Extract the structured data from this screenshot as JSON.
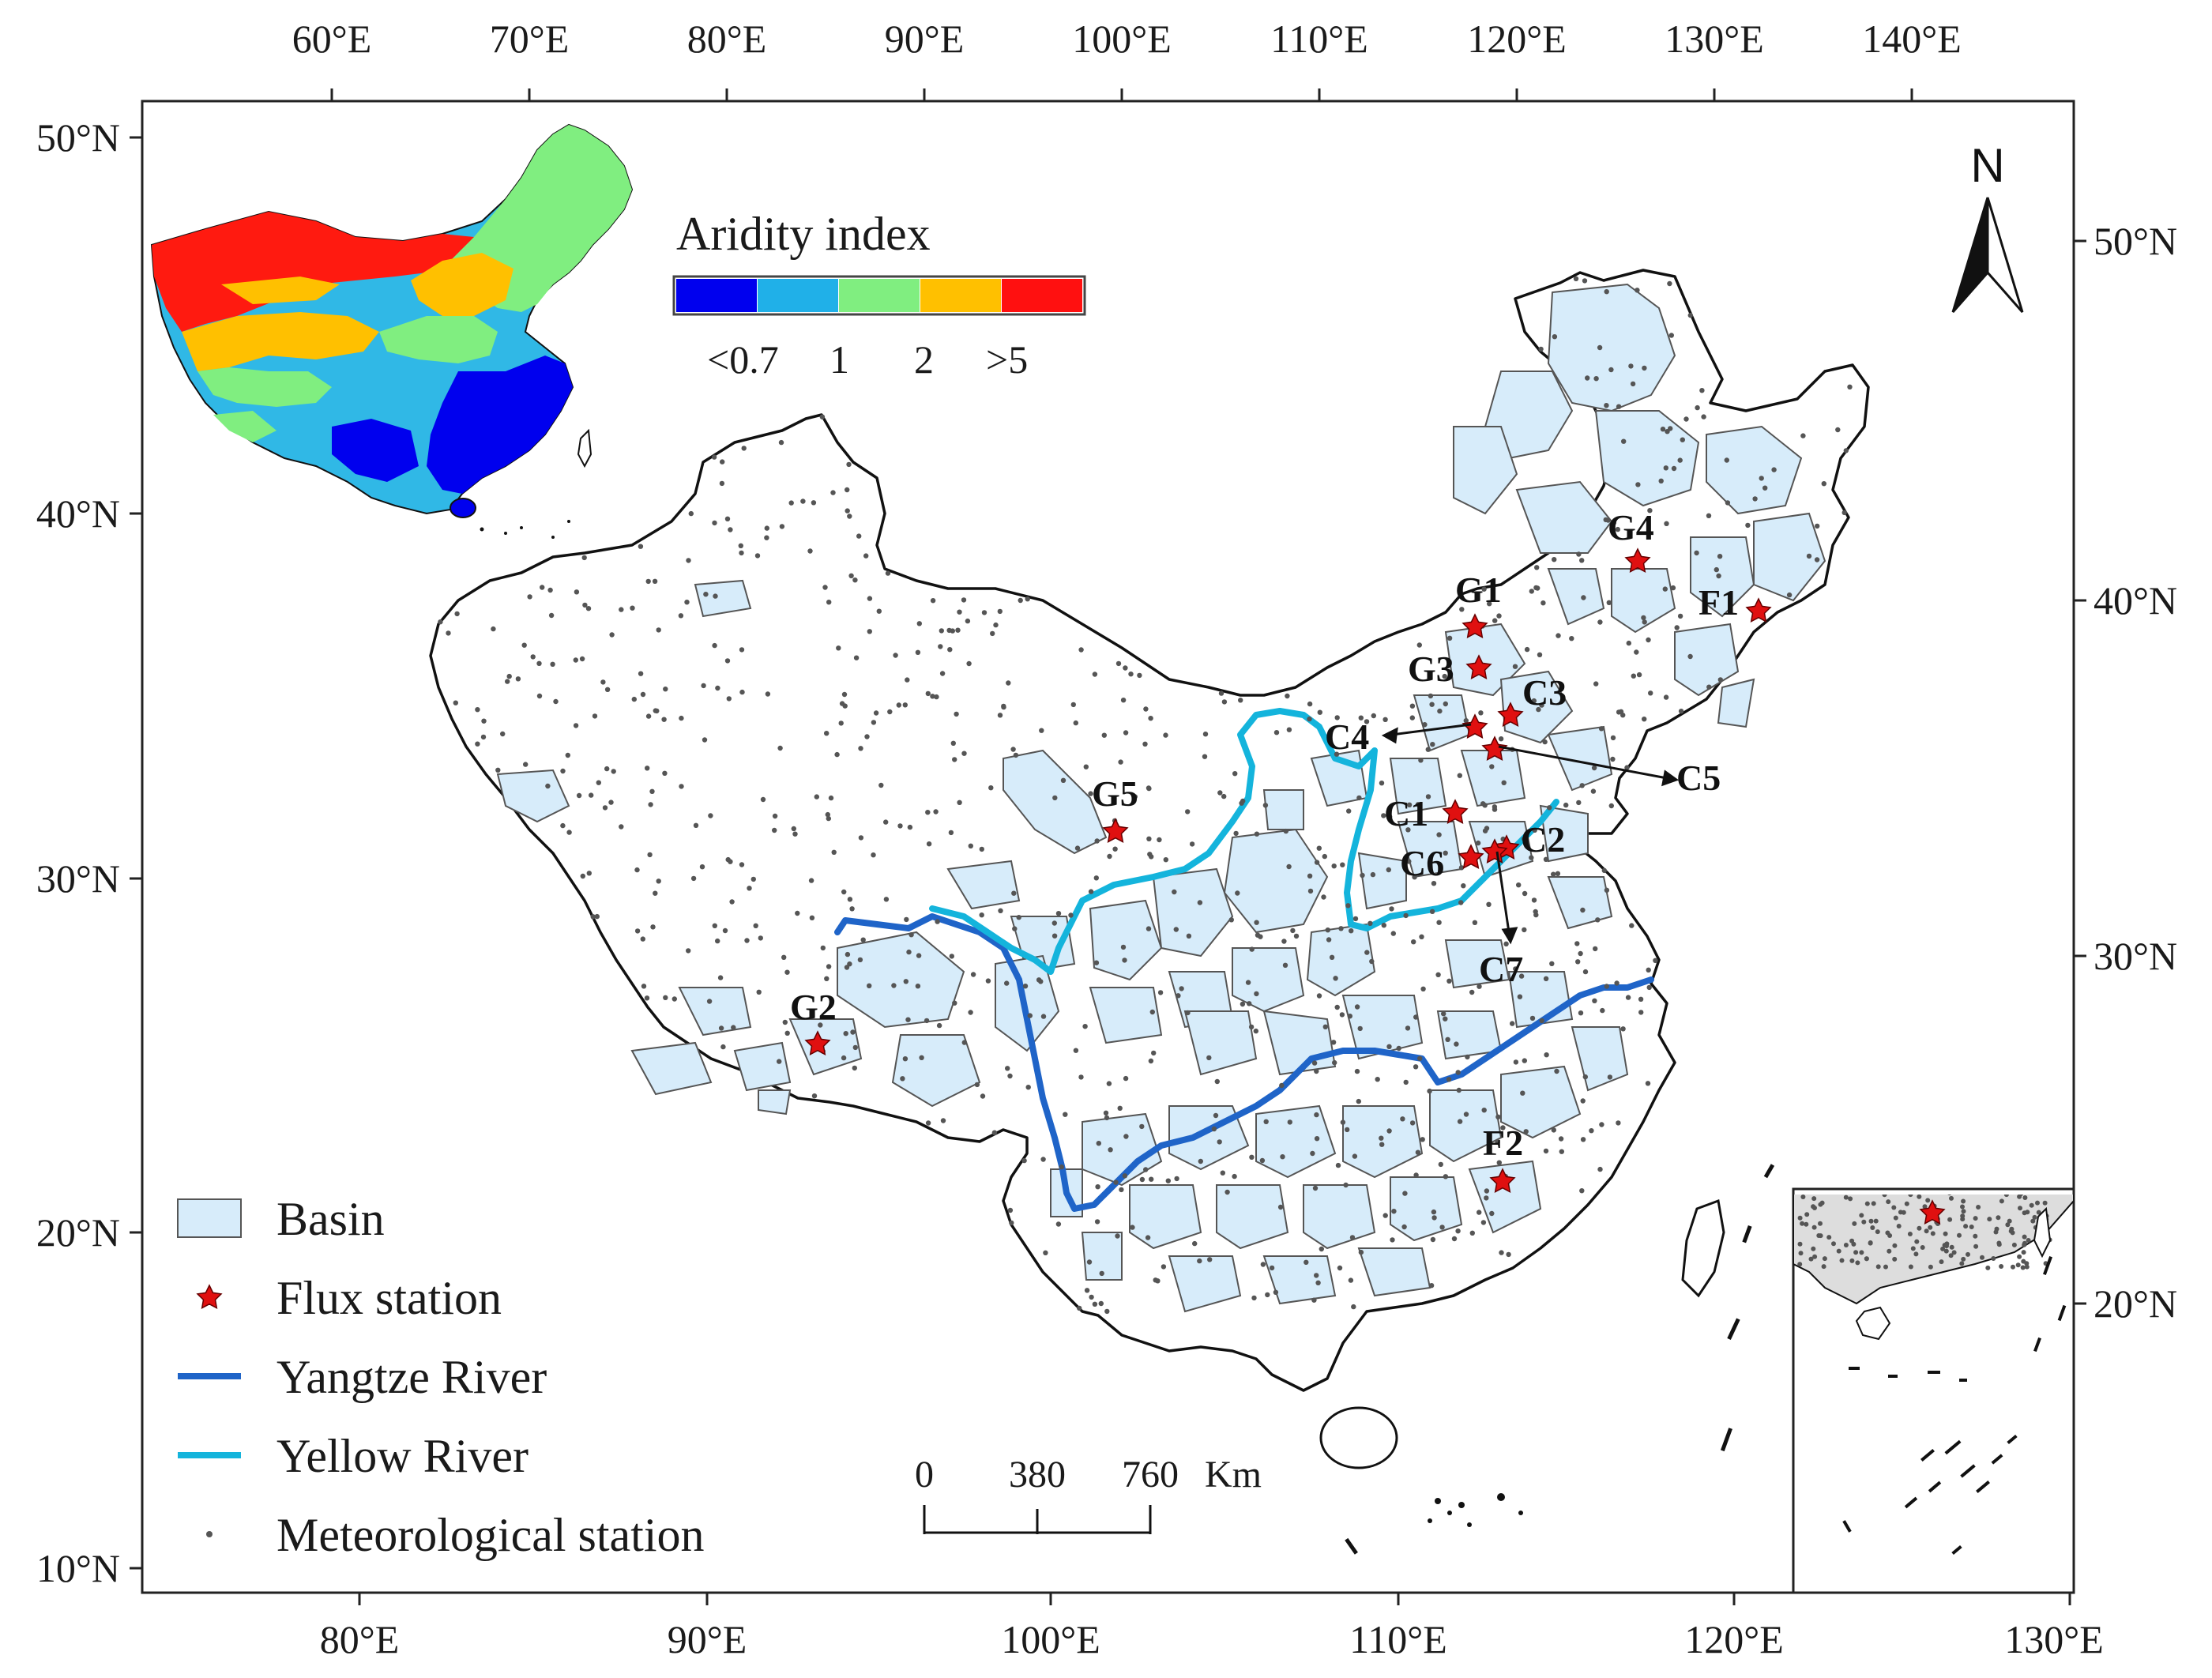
{
  "top_axis": {
    "ticks": [
      "60°E",
      "70°E",
      "80°E",
      "90°E",
      "100°E",
      "110°E",
      "120°E",
      "130°E",
      "140°E"
    ]
  },
  "bottom_axis": {
    "ticks": [
      "80°E",
      "90°E",
      "100°E",
      "110°E",
      "120°E",
      "130°E"
    ]
  },
  "left_axis": {
    "ticks": [
      "50°N",
      "40°N",
      "30°N",
      "20°N",
      "10°N"
    ]
  },
  "right_axis": {
    "ticks": [
      "50°N",
      "40°N",
      "30°N",
      "20°N"
    ]
  },
  "aridity": {
    "title": "Aridity index",
    "colors": [
      "#0000ee",
      "#20b0e8",
      "#80ee80",
      "#ffc000",
      "#ff1010"
    ],
    "ticks": [
      "<0.7",
      "1",
      "2",
      ">5"
    ]
  },
  "north_arrow": {
    "label": "N"
  },
  "scale_bar": {
    "labels": [
      "0",
      "380",
      "760"
    ],
    "unit": "Km"
  },
  "legend": {
    "basin": "Basin",
    "flux": "Flux station",
    "yangtze": "Yangtze River",
    "yellow": "Yellow River",
    "meteo": "Meteorological station"
  },
  "colors": {
    "basin_fill": "#d7ecfa",
    "yangtze": "#1f64c8",
    "yellow": "#14b4dc",
    "star": "#e01010"
  },
  "stations": [
    "G4",
    "G1",
    "F1",
    "G3",
    "C3",
    "C4",
    "C5",
    "G5",
    "C1",
    "C2",
    "C6",
    "C7",
    "G2",
    "F2"
  ]
}
